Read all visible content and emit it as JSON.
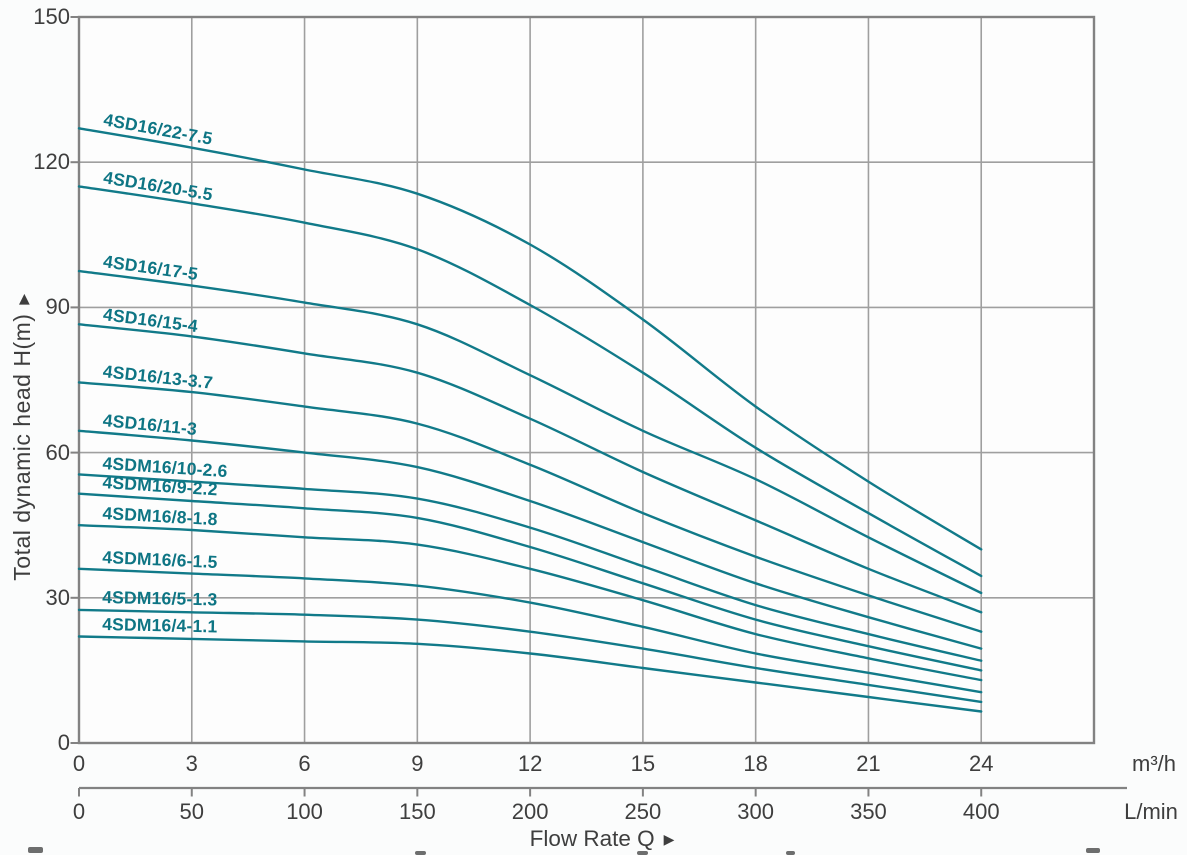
{
  "icons": {
    "axis_arrow": "▶"
  },
  "chart_data": {
    "type": "line",
    "title": "",
    "ylabel": "Total dynamic head H(m)",
    "xlabel": "Flow Rate Q",
    "x_axis_units": {
      "primary": "m³/h",
      "secondary": "L/min"
    },
    "x_ticks_primary": [
      0,
      3,
      6,
      9,
      12,
      15,
      18,
      21,
      24
    ],
    "x_ticks_secondary": [
      0,
      50,
      100,
      150,
      200,
      250,
      300,
      350,
      400
    ],
    "y_ticks": [
      150,
      120,
      90,
      60,
      30,
      0
    ],
    "xlim": [
      0,
      27
    ],
    "ylim": [
      0,
      150
    ],
    "grid": true,
    "legend_position": "inline-curve-labels",
    "line_color": "#117a89",
    "label_color": "#0e7584",
    "grid_color": "#9f9f9f",
    "axis_color": "#828282",
    "text_color": "#3e3e3e",
    "x": [
      0,
      3,
      6,
      9,
      12,
      15,
      18,
      21,
      24
    ],
    "series": [
      {
        "name": "4SD16/22-7.5",
        "values": [
          127,
          123,
          118.5,
          113.5,
          103,
          87.5,
          69.5,
          54,
          40
        ]
      },
      {
        "name": "4SD16/20-5.5",
        "values": [
          115,
          111.5,
          107.5,
          102,
          90.5,
          76.5,
          61,
          47.5,
          34.5
        ]
      },
      {
        "name": "4SD16/17-5",
        "values": [
          97.5,
          94.5,
          91,
          86.5,
          76,
          64.5,
          54.5,
          42.5,
          31
        ]
      },
      {
        "name": "4SD16/15-4",
        "values": [
          86.5,
          84,
          80.5,
          76.5,
          67,
          56,
          46,
          36,
          27
        ]
      },
      {
        "name": "4SD16/13-3.7",
        "values": [
          74.5,
          72.5,
          69.5,
          66,
          57.5,
          47.5,
          38.5,
          30.5,
          23
        ]
      },
      {
        "name": "4SD16/11-3",
        "values": [
          64.5,
          62.5,
          60,
          57,
          50,
          41.5,
          33,
          26,
          19.5
        ]
      },
      {
        "name": "4SDM16/10-2.6",
        "values": [
          55.5,
          54,
          52.5,
          50.5,
          44.5,
          36.5,
          28.5,
          22.5,
          17
        ]
      },
      {
        "name": "4SDM16/9-2.2",
        "values": [
          51.5,
          50,
          48.5,
          46.5,
          40.5,
          33,
          25.5,
          20,
          15
        ]
      },
      {
        "name": "4SDM16/8-1.8",
        "values": [
          45,
          44,
          42.5,
          41,
          36,
          29.5,
          22.5,
          17.5,
          13
        ]
      },
      {
        "name": "4SDM16/6-1.5",
        "values": [
          36,
          35,
          34,
          32.5,
          29,
          24,
          18.5,
          14.5,
          10.5
        ]
      },
      {
        "name": "4SDM16/5-1.3",
        "values": [
          27.5,
          27,
          26.5,
          25.5,
          23,
          19.5,
          15.5,
          12,
          8.5
        ]
      },
      {
        "name": "4SDM16/4-1.1",
        "values": [
          22,
          21.5,
          21,
          20.5,
          18.5,
          15.5,
          12.5,
          9.5,
          6.5
        ]
      }
    ]
  }
}
